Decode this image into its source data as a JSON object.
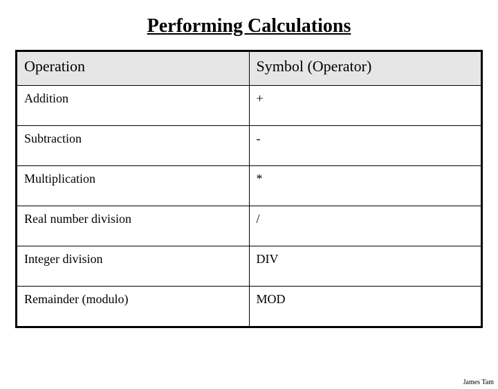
{
  "title": "Performing Calculations",
  "table": {
    "headers": {
      "operation": "Operation",
      "symbol": "Symbol (Operator)"
    },
    "rows": [
      {
        "operation": "Addition",
        "symbol": "+"
      },
      {
        "operation": "Subtraction",
        "symbol": "-"
      },
      {
        "operation": "Multiplication",
        "symbol": "*"
      },
      {
        "operation": "Real number division",
        "symbol": "/"
      },
      {
        "operation": "Integer division",
        "symbol": "DIV"
      },
      {
        "operation": "Remainder (modulo)",
        "symbol": "MOD"
      }
    ],
    "header_bg": "#e6e6e6",
    "border_color": "#000000",
    "header_fontsize": 22,
    "cell_fontsize": 18
  },
  "footer": "James Tam"
}
